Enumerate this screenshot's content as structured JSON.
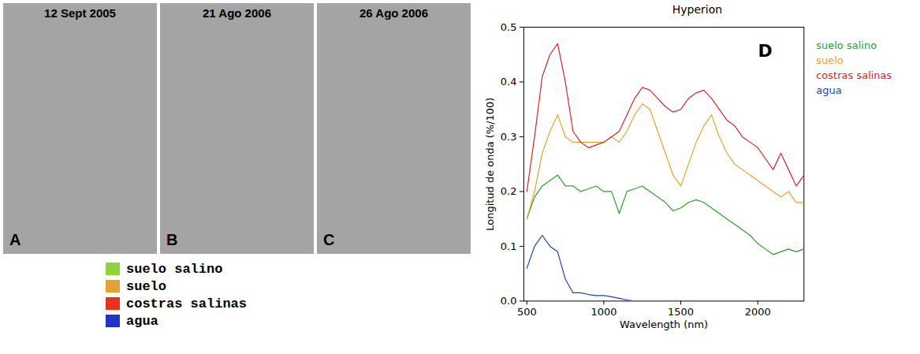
{
  "map_panels": {
    "titles": [
      "12 Sept 2005",
      "21 Ago 2006",
      "26 Ago 2006"
    ],
    "letters": [
      "A",
      "B",
      "C"
    ]
  },
  "map_legend": [
    {
      "name": "suelo salino",
      "color": "#8fd33a"
    },
    {
      "name": "suelo",
      "color": "#e6a22e"
    },
    {
      "name": "costras salinas",
      "color": "#e8321e"
    },
    {
      "name": "agua",
      "color": "#2233c8"
    }
  ],
  "chart_data": {
    "type": "line",
    "title": "Hyperion",
    "panel_letter": "D",
    "x_label": "Wavelength (nm)",
    "y_label": "Longitud de onda (%/100)",
    "xlim": [
      480,
      2300
    ],
    "xticks": [
      500,
      1000,
      1500,
      2000
    ],
    "ylim": [
      0,
      0.5
    ],
    "yticks": [
      {
        "value": 0,
        "label": "0.0"
      },
      0.1,
      0.2,
      0.3,
      0.4,
      0.5
    ],
    "legend": "right",
    "x": [
      500,
      550,
      600,
      650,
      700,
      750,
      800,
      850,
      900,
      950,
      1000,
      1050,
      1100,
      1150,
      1200,
      1250,
      1300,
      1350,
      1400,
      1450,
      1500,
      1550,
      1600,
      1650,
      1700,
      1750,
      1800,
      1850,
      1900,
      1950,
      2000,
      2050,
      2100,
      2150,
      2200,
      2250,
      2300
    ],
    "series": [
      {
        "name": "suelo salino",
        "color": "#2ca02c",
        "values": [
          0.15,
          0.19,
          0.21,
          0.22,
          0.23,
          0.21,
          0.21,
          0.2,
          0.205,
          0.21,
          0.2,
          0.2,
          0.16,
          0.2,
          0.205,
          0.21,
          0.2,
          0.19,
          0.18,
          0.165,
          0.17,
          0.18,
          0.185,
          0.18,
          0.17,
          0.16,
          0.15,
          0.14,
          0.13,
          0.12,
          0.105,
          0.095,
          0.085,
          0.09,
          0.095,
          0.09,
          0.095
        ]
      },
      {
        "name": "suelo",
        "color": "#e6a22e",
        "values": [
          0.15,
          0.2,
          0.27,
          0.31,
          0.34,
          0.3,
          0.29,
          0.29,
          0.29,
          0.29,
          0.29,
          0.3,
          0.29,
          0.31,
          0.34,
          0.36,
          0.35,
          0.31,
          0.27,
          0.23,
          0.21,
          0.25,
          0.29,
          0.32,
          0.34,
          0.3,
          0.27,
          0.25,
          0.24,
          0.23,
          0.22,
          0.21,
          0.2,
          0.19,
          0.2,
          0.18,
          0.18
        ]
      },
      {
        "name": "costras salinas",
        "color": "#d62728",
        "values": [
          0.2,
          0.3,
          0.41,
          0.45,
          0.47,
          0.4,
          0.31,
          0.29,
          0.28,
          0.285,
          0.29,
          0.3,
          0.31,
          0.34,
          0.37,
          0.39,
          0.385,
          0.37,
          0.355,
          0.345,
          0.35,
          0.37,
          0.38,
          0.385,
          0.37,
          0.35,
          0.33,
          0.32,
          0.3,
          0.29,
          0.28,
          0.26,
          0.24,
          0.27,
          0.24,
          0.21,
          0.23
        ]
      },
      {
        "name": "agua",
        "color": "#1f3fbf",
        "values": [
          0.06,
          0.1,
          0.12,
          0.1,
          0.09,
          0.04,
          0.015,
          0.015,
          0.012,
          0.01,
          0.01,
          0.008,
          0.005,
          0.002,
          0.0,
          null,
          null,
          null,
          null,
          null,
          null,
          null,
          null,
          null,
          null,
          null,
          null,
          null,
          null,
          null,
          null,
          null,
          null,
          null,
          null,
          null,
          null
        ]
      }
    ]
  }
}
